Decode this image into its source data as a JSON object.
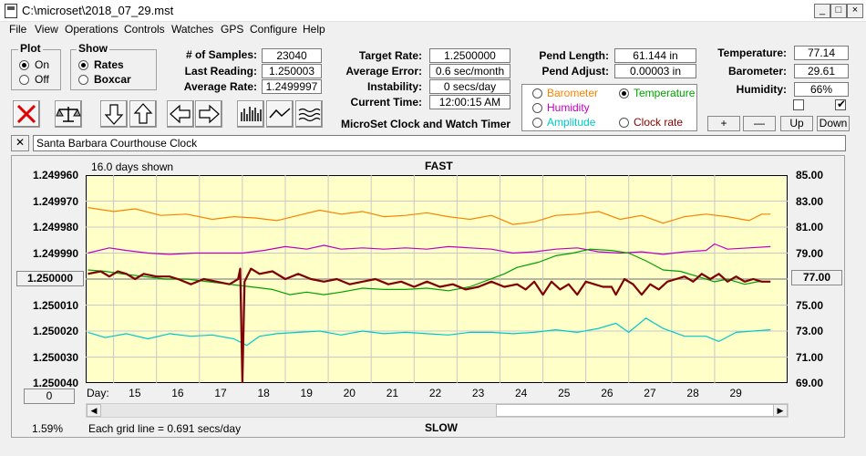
{
  "window": {
    "title": "C:\\microset\\2018_07_29.mst",
    "min_icon": "minimize-icon",
    "max_icon": "maximize-icon",
    "close_icon": "close-icon"
  },
  "menu": [
    "File",
    "View",
    "Operations",
    "Controls",
    "Watches",
    "GPS",
    "Configure",
    "Help"
  ],
  "plot_group": {
    "title": "Plot",
    "options": [
      "On",
      "Off"
    ],
    "selected": "On"
  },
  "show_group": {
    "title": "Show",
    "options": [
      "Rates",
      "Boxcar"
    ],
    "selected": "Rates"
  },
  "stats": {
    "samples_label": "# of Samples:",
    "samples": "23040",
    "last_label": "Last Reading:",
    "last": "1.250003",
    "avg_label": "Average Rate:",
    "avg": "1.2499997",
    "target_label": "Target Rate:",
    "target": "1.2500000",
    "avgerr_label": "Average Error:",
    "avgerr": "0.6 sec/month",
    "instab_label": "Instability:",
    "instab": "0 secs/day",
    "time_label": "Current Time:",
    "time": "12:00:15 AM",
    "pendlen_label": "Pend Length:",
    "pendlen": "61.144 in",
    "pendadj_label": "Pend Adjust:",
    "pendadj": "0.00003 in",
    "temp_label": "Temperature:",
    "temp": "77.14",
    "baro_label": "Barometer:",
    "baro": "29.61",
    "hum_label": "Humidity:",
    "hum": "66%"
  },
  "app_caption": "MicroSet Clock and Watch Timer",
  "overlay_options": [
    {
      "label": "Barometer",
      "color": "#ff8000",
      "selected": false
    },
    {
      "label": "Temperature",
      "color": "#00a000",
      "selected": true
    },
    {
      "label": "Humidity",
      "color": "#c000c0",
      "selected": false
    },
    {
      "label": "Amplitude",
      "color": "#00c8c8",
      "selected": false
    },
    {
      "label": "Clock rate",
      "color": "#8b0000",
      "selected": false
    }
  ],
  "env_buttons": [
    "+",
    "—",
    "Up",
    "Down"
  ],
  "watch_name": "Santa Barbara Courthouse Clock",
  "chart_data": {
    "type": "line",
    "days_shown": "16.0 days shown",
    "top_label": "FAST",
    "bottom_label": "SLOW",
    "grid_note": "Each grid line = 0.691 secs/day",
    "left_ticks": [
      "1.249960",
      "1.249970",
      "1.249980",
      "1.249990",
      "1.250000",
      "1.250010",
      "1.250020",
      "1.250030",
      "1.250040"
    ],
    "right_ticks": [
      "85.00",
      "83.00",
      "81.00",
      "79.00",
      "77.00",
      "75.00",
      "73.00",
      "71.00",
      "69.00"
    ],
    "xlabel": "Day:",
    "x_days": [
      "15",
      "16",
      "17",
      "18",
      "19",
      "20",
      "21",
      "22",
      "23",
      "24",
      "25",
      "26",
      "27",
      "28",
      "29"
    ],
    "left_button": "1.250000",
    "right_button": "77.00",
    "bottom_left_button": "0",
    "percent": "1.59%",
    "left_range": [
      1.24996,
      1.25004
    ],
    "right_range": [
      69,
      85
    ],
    "x_range": [
      13.85,
      30.2
    ],
    "series": [
      {
        "color": "#ff8000",
        "width": 1.2,
        "axis": "right",
        "points": [
          [
            13.9,
            82.5
          ],
          [
            14.5,
            82.2
          ],
          [
            15.0,
            82.4
          ],
          [
            15.6,
            81.9
          ],
          [
            16.2,
            82.0
          ],
          [
            16.8,
            81.6
          ],
          [
            17.3,
            81.8
          ],
          [
            17.8,
            81.7
          ],
          [
            18.3,
            81.5
          ],
          [
            18.8,
            81.9
          ],
          [
            19.3,
            82.3
          ],
          [
            19.8,
            82.0
          ],
          [
            20.3,
            82.2
          ],
          [
            20.8,
            81.8
          ],
          [
            21.3,
            81.9
          ],
          [
            21.8,
            82.1
          ],
          [
            22.3,
            81.8
          ],
          [
            22.8,
            81.6
          ],
          [
            23.3,
            81.9
          ],
          [
            23.8,
            81.2
          ],
          [
            24.3,
            81.4
          ],
          [
            24.8,
            81.9
          ],
          [
            25.3,
            82.0
          ],
          [
            25.8,
            82.2
          ],
          [
            26.3,
            81.6
          ],
          [
            26.8,
            81.9
          ],
          [
            27.3,
            81.3
          ],
          [
            27.8,
            81.8
          ],
          [
            28.3,
            82.0
          ],
          [
            28.8,
            81.8
          ],
          [
            29.3,
            81.5
          ],
          [
            29.6,
            82.0
          ],
          [
            29.8,
            82.0
          ]
        ]
      },
      {
        "color": "#c000c0",
        "width": 1.2,
        "axis": "right",
        "points": [
          [
            13.9,
            79.0
          ],
          [
            14.4,
            79.4
          ],
          [
            14.8,
            79.2
          ],
          [
            15.3,
            79.0
          ],
          [
            15.8,
            78.9
          ],
          [
            16.4,
            79.0
          ],
          [
            17.0,
            79.0
          ],
          [
            17.5,
            79.0
          ],
          [
            18.0,
            79.2
          ],
          [
            18.5,
            79.5
          ],
          [
            19.0,
            79.3
          ],
          [
            19.4,
            79.6
          ],
          [
            19.8,
            79.3
          ],
          [
            20.3,
            79.4
          ],
          [
            20.8,
            79.3
          ],
          [
            21.3,
            79.4
          ],
          [
            21.8,
            79.3
          ],
          [
            22.3,
            79.5
          ],
          [
            22.8,
            79.4
          ],
          [
            23.3,
            79.3
          ],
          [
            23.8,
            79.0
          ],
          [
            24.3,
            79.1
          ],
          [
            24.8,
            79.3
          ],
          [
            25.3,
            79.4
          ],
          [
            25.8,
            79.1
          ],
          [
            26.3,
            79.0
          ],
          [
            26.8,
            79.1
          ],
          [
            27.3,
            78.9
          ],
          [
            27.8,
            79.1
          ],
          [
            28.3,
            79.2
          ],
          [
            28.5,
            79.7
          ],
          [
            28.8,
            79.3
          ],
          [
            29.3,
            79.4
          ],
          [
            29.8,
            79.5
          ]
        ]
      },
      {
        "color": "#00c8c8",
        "width": 1.2,
        "axis": "right",
        "points": [
          [
            13.9,
            72.9
          ],
          [
            14.3,
            72.5
          ],
          [
            14.8,
            72.8
          ],
          [
            15.3,
            72.4
          ],
          [
            15.8,
            72.8
          ],
          [
            16.3,
            72.6
          ],
          [
            16.8,
            72.7
          ],
          [
            17.3,
            72.4
          ],
          [
            17.6,
            71.9
          ],
          [
            17.9,
            72.6
          ],
          [
            18.3,
            72.8
          ],
          [
            18.8,
            72.9
          ],
          [
            19.3,
            73.0
          ],
          [
            19.8,
            72.7
          ],
          [
            20.3,
            73.0
          ],
          [
            20.8,
            72.8
          ],
          [
            21.3,
            72.9
          ],
          [
            21.8,
            72.8
          ],
          [
            22.3,
            72.7
          ],
          [
            22.8,
            72.9
          ],
          [
            23.3,
            72.9
          ],
          [
            23.8,
            72.8
          ],
          [
            24.3,
            72.9
          ],
          [
            24.8,
            73.1
          ],
          [
            25.3,
            72.9
          ],
          [
            25.8,
            73.2
          ],
          [
            26.2,
            73.6
          ],
          [
            26.5,
            72.9
          ],
          [
            26.9,
            74.0
          ],
          [
            27.3,
            73.2
          ],
          [
            27.8,
            72.6
          ],
          [
            28.3,
            72.6
          ],
          [
            28.6,
            72.2
          ],
          [
            29.0,
            72.9
          ],
          [
            29.4,
            73.0
          ],
          [
            29.8,
            73.1
          ]
        ]
      },
      {
        "color": "#00a000",
        "width": 1.2,
        "axis": "right",
        "points": [
          [
            13.9,
            77.7
          ],
          [
            14.3,
            77.6
          ],
          [
            14.7,
            77.4
          ],
          [
            15.2,
            77.2
          ],
          [
            15.7,
            77.0
          ],
          [
            16.2,
            77.0
          ],
          [
            16.7,
            76.8
          ],
          [
            17.2,
            76.6
          ],
          [
            17.7,
            76.4
          ],
          [
            18.2,
            76.2
          ],
          [
            18.6,
            75.8
          ],
          [
            19.0,
            76.0
          ],
          [
            19.4,
            75.8
          ],
          [
            19.8,
            76.0
          ],
          [
            20.3,
            76.3
          ],
          [
            20.8,
            76.2
          ],
          [
            21.3,
            76.2
          ],
          [
            21.8,
            76.3
          ],
          [
            22.3,
            76.1
          ],
          [
            22.8,
            76.4
          ],
          [
            23.2,
            76.9
          ],
          [
            23.6,
            77.4
          ],
          [
            23.9,
            77.9
          ],
          [
            24.4,
            78.3
          ],
          [
            24.8,
            78.8
          ],
          [
            25.2,
            79.0
          ],
          [
            25.6,
            79.3
          ],
          [
            26.1,
            79.2
          ],
          [
            26.5,
            79.0
          ],
          [
            26.9,
            78.4
          ],
          [
            27.3,
            77.7
          ],
          [
            27.7,
            77.6
          ],
          [
            28.1,
            77.2
          ],
          [
            28.5,
            76.8
          ],
          [
            28.8,
            77.0
          ],
          [
            29.2,
            76.6
          ],
          [
            29.5,
            76.8
          ],
          [
            29.8,
            76.8
          ]
        ]
      },
      {
        "color": "#800000",
        "width": 2.2,
        "axis": "left",
        "points": [
          [
            13.9,
            1.249998
          ],
          [
            14.2,
            1.249997
          ],
          [
            14.4,
            1.249999
          ],
          [
            14.6,
            1.249997
          ],
          [
            14.8,
            1.249998
          ],
          [
            15.0,
            1.25
          ],
          [
            15.2,
            1.249998
          ],
          [
            15.5,
            1.249999
          ],
          [
            15.8,
            1.249999
          ],
          [
            16.0,
            1.25
          ],
          [
            16.3,
            1.250002
          ],
          [
            16.6,
            1.25
          ],
          [
            16.9,
            1.250001
          ],
          [
            17.2,
            1.250002
          ],
          [
            17.4,
            1.25
          ],
          [
            17.45,
            1.249996
          ],
          [
            17.5,
            1.25004
          ],
          [
            17.55,
            1.250001
          ],
          [
            17.7,
            1.249996
          ],
          [
            17.9,
            1.249998
          ],
          [
            18.2,
            1.249997
          ],
          [
            18.5,
            1.25
          ],
          [
            18.8,
            1.249998
          ],
          [
            19.1,
            1.25
          ],
          [
            19.4,
            1.250001
          ],
          [
            19.7,
            1.25
          ],
          [
            20.0,
            1.250002
          ],
          [
            20.3,
            1.250001
          ],
          [
            20.6,
            1.25
          ],
          [
            20.9,
            1.250002
          ],
          [
            21.2,
            1.250001
          ],
          [
            21.5,
            1.250003
          ],
          [
            21.8,
            1.250001
          ],
          [
            22.1,
            1.250003
          ],
          [
            22.4,
            1.250002
          ],
          [
            22.7,
            1.250004
          ],
          [
            23.0,
            1.250003
          ],
          [
            23.3,
            1.250001
          ],
          [
            23.6,
            1.250003
          ],
          [
            23.9,
            1.250002
          ],
          [
            24.1,
            1.250004
          ],
          [
            24.3,
            1.250001
          ],
          [
            24.5,
            1.250006
          ],
          [
            24.7,
            1.250001
          ],
          [
            24.9,
            1.250004
          ],
          [
            25.1,
            1.250002
          ],
          [
            25.3,
            1.250006
          ],
          [
            25.5,
            1.250001
          ],
          [
            25.7,
            1.250002
          ],
          [
            25.9,
            1.250003
          ],
          [
            26.1,
            1.250003
          ],
          [
            26.2,
            1.250006
          ],
          [
            26.4,
            1.25
          ],
          [
            26.6,
            1.250002
          ],
          [
            26.8,
            1.250006
          ],
          [
            27.0,
            1.250002
          ],
          [
            27.2,
            1.250004
          ],
          [
            27.4,
            1.250001
          ],
          [
            27.6,
            1.25
          ],
          [
            27.8,
            1.249999
          ],
          [
            28.0,
            1.250001
          ],
          [
            28.2,
            1.249998
          ],
          [
            28.4,
            1.25
          ],
          [
            28.6,
            1.249998
          ],
          [
            28.8,
            1.250001
          ],
          [
            29.0,
            1.249999
          ],
          [
            29.2,
            1.250001
          ],
          [
            29.4,
            1.25
          ],
          [
            29.6,
            1.250001
          ],
          [
            29.8,
            1.250001
          ]
        ]
      }
    ]
  }
}
